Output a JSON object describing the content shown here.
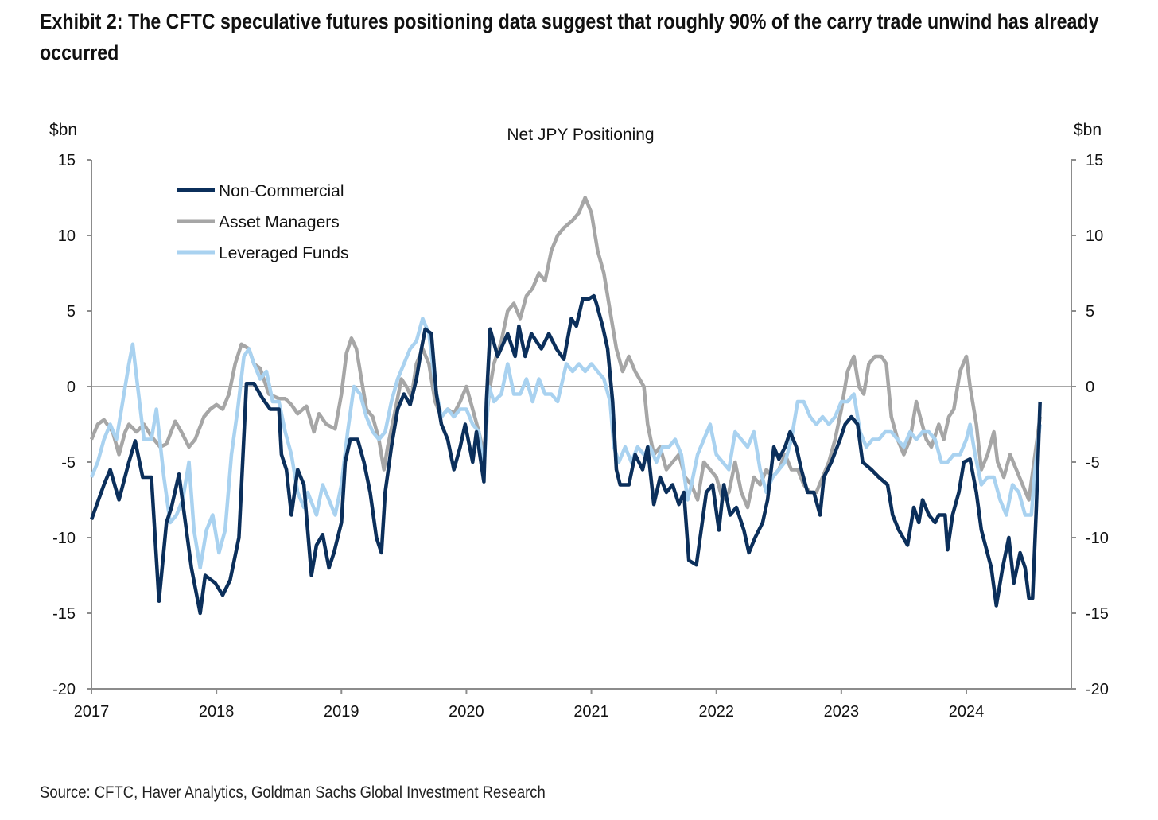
{
  "title": "Exhibit 2: The CFTC speculative futures positioning data suggest that roughly 90% of the carry trade unwind has already occurred",
  "source": "Source: CFTC, Haver Analytics, Goldman Sachs Global Investment Research",
  "chart_data": {
    "type": "line",
    "title": "Net JPY Positioning",
    "ylabel_left": "$bn",
    "ylabel_right": "$bn",
    "xlabel": "",
    "xlim": [
      2017,
      2024.84
    ],
    "ylim": [
      -20,
      15
    ],
    "yticks": [
      15,
      10,
      5,
      0,
      -5,
      -10,
      -15,
      -20
    ],
    "xticks": [
      2017,
      2018,
      2019,
      2020,
      2021,
      2022,
      2023,
      2024
    ],
    "zero_line": true,
    "legend_position": "top-left",
    "series": [
      {
        "name": "Non-Commercial",
        "color": "#0b2f5b",
        "x": [
          2017.0,
          2017.1,
          2017.15,
          2017.22,
          2017.3,
          2017.35,
          2017.41,
          2017.48,
          2017.54,
          2017.6,
          2017.64,
          2017.7,
          2017.8,
          2017.87,
          2017.91,
          2017.99,
          2018.05,
          2018.11,
          2018.18,
          2018.21,
          2018.24,
          2018.3,
          2018.37,
          2018.43,
          2018.5,
          2018.52,
          2018.56,
          2018.6,
          2018.65,
          2018.7,
          2018.76,
          2018.8,
          2018.85,
          2018.9,
          2018.94,
          2019.0,
          2019.03,
          2019.07,
          2019.13,
          2019.18,
          2019.23,
          2019.28,
          2019.32,
          2019.35,
          2019.4,
          2019.45,
          2019.5,
          2019.55,
          2019.6,
          2019.64,
          2019.67,
          2019.72,
          2019.76,
          2019.8,
          2019.85,
          2019.9,
          2019.95,
          2019.99,
          2020.05,
          2020.08,
          2020.14,
          2020.16,
          2020.19,
          2020.25,
          2020.33,
          2020.39,
          2020.42,
          2020.47,
          2020.52,
          2020.6,
          2020.66,
          2020.72,
          2020.78,
          2020.84,
          2020.88,
          2020.93,
          2020.98,
          2021.02,
          2021.04,
          2021.09,
          2021.13,
          2021.17,
          2021.2,
          2021.23,
          2021.3,
          2021.35,
          2021.41,
          2021.45,
          2021.5,
          2021.55,
          2021.6,
          2021.65,
          2021.7,
          2021.74,
          2021.78,
          2021.84,
          2021.87,
          2021.92,
          2021.97,
          2022.02,
          2022.06,
          2022.11,
          2022.16,
          2022.22,
          2022.26,
          2022.31,
          2022.37,
          2022.41,
          2022.46,
          2022.5,
          2022.55,
          2022.59,
          2022.64,
          2022.68,
          2022.73,
          2022.78,
          2022.83,
          2022.86,
          2022.92,
          2022.99,
          2023.03,
          2023.08,
          2023.13,
          2023.17,
          2023.24,
          2023.3,
          2023.37,
          2023.41,
          2023.46,
          2023.53,
          2023.58,
          2023.62,
          2023.65,
          2023.7,
          2023.75,
          2023.78,
          2023.83,
          2023.85,
          2023.89,
          2023.94,
          2023.98,
          2024.03,
          2024.08,
          2024.12,
          2024.2,
          2024.24,
          2024.29,
          2024.34,
          2024.38,
          2024.43,
          2024.47,
          2024.5,
          2024.53,
          2024.56,
          2024.59
        ],
        "y": [
          -8.8,
          -6.5,
          -5.5,
          -7.5,
          -5,
          -3.6,
          -6,
          -6,
          -14.2,
          -9,
          -8,
          -5.8,
          -12,
          -15,
          -12.5,
          -13,
          -13.8,
          -12.8,
          -10,
          -5,
          0.2,
          0.2,
          -0.8,
          -1.5,
          -1.5,
          -4.5,
          -5.5,
          -8.5,
          -5.5,
          -6.5,
          -12.5,
          -10.5,
          -9.8,
          -12,
          -11,
          -9,
          -5,
          -3.5,
          -3.5,
          -5,
          -7,
          -10,
          -11,
          -7,
          -4,
          -1.5,
          -0.5,
          -1.2,
          0.5,
          2.5,
          3.8,
          3.5,
          -0.5,
          -2.5,
          -3.5,
          -5.5,
          -4,
          -2.5,
          -5,
          -3,
          -6.3,
          -1,
          3.8,
          2,
          3.5,
          2,
          4,
          2,
          3.5,
          2.5,
          3.5,
          2.5,
          1.8,
          4.5,
          4,
          5.8,
          5.8,
          6,
          5.5,
          4,
          2.5,
          -1,
          -5.5,
          -6.5,
          -6.5,
          -4.5,
          -5.5,
          -4,
          -7.8,
          -6,
          -7,
          -6.5,
          -7.8,
          -7,
          -11.5,
          -11.8,
          -10,
          -7,
          -6.5,
          -9.5,
          -6.5,
          -8.5,
          -8,
          -9.5,
          -11,
          -10,
          -9,
          -7.5,
          -4,
          -4.8,
          -4,
          -3,
          -4,
          -5.5,
          -7,
          -7,
          -8.5,
          -6,
          -5,
          -3.5,
          -2.5,
          -2,
          -2.5,
          -5,
          -5.5,
          -6,
          -6.5,
          -8.5,
          -9.5,
          -10.5,
          -8,
          -9,
          -7.5,
          -8.5,
          -9,
          -8.5,
          -8.5,
          -10.8,
          -8.5,
          -7,
          -5,
          -4.8,
          -7,
          -9.5,
          -12,
          -14.5,
          -12,
          -10,
          -13,
          -11,
          -12,
          -14,
          -14,
          -8,
          -1
        ]
      },
      {
        "name": "Asset Managers",
        "color": "#a6a6a6",
        "x": [
          2017.0,
          2017.05,
          2017.1,
          2017.17,
          2017.22,
          2017.27,
          2017.3,
          2017.36,
          2017.42,
          2017.48,
          2017.55,
          2017.6,
          2017.67,
          2017.72,
          2017.78,
          2017.83,
          2017.9,
          2017.95,
          2018.0,
          2018.05,
          2018.1,
          2018.15,
          2018.2,
          2018.26,
          2018.3,
          2018.35,
          2018.42,
          2018.5,
          2018.55,
          2018.6,
          2018.65,
          2018.72,
          2018.78,
          2018.82,
          2018.88,
          2018.95,
          2019.0,
          2019.04,
          2019.08,
          2019.12,
          2019.17,
          2019.2,
          2019.25,
          2019.3,
          2019.34,
          2019.37,
          2019.42,
          2019.48,
          2019.52,
          2019.56,
          2019.6,
          2019.65,
          2019.7,
          2019.75,
          2019.8,
          2019.85,
          2019.9,
          2019.95,
          2020.0,
          2020.05,
          2020.1,
          2020.14,
          2020.18,
          2020.22,
          2020.28,
          2020.33,
          2020.38,
          2020.43,
          2020.48,
          2020.53,
          2020.58,
          2020.63,
          2020.68,
          2020.73,
          2020.78,
          2020.85,
          2020.9,
          2020.95,
          2021.0,
          2021.05,
          2021.1,
          2021.15,
          2021.2,
          2021.25,
          2021.3,
          2021.35,
          2021.42,
          2021.45,
          2021.5,
          2021.55,
          2021.6,
          2021.65,
          2021.7,
          2021.75,
          2021.8,
          2021.85,
          2021.9,
          2021.95,
          2022.0,
          2022.05,
          2022.1,
          2022.15,
          2022.2,
          2022.25,
          2022.3,
          2022.35,
          2022.4,
          2022.45,
          2022.5,
          2022.55,
          2022.6,
          2022.65,
          2022.7,
          2022.75,
          2022.8,
          2022.85,
          2022.9,
          2022.95,
          2023.0,
          2023.05,
          2023.1,
          2023.14,
          2023.18,
          2023.22,
          2023.27,
          2023.32,
          2023.36,
          2023.4,
          2023.45,
          2023.5,
          2023.55,
          2023.6,
          2023.63,
          2023.68,
          2023.72,
          2023.78,
          2023.82,
          2023.86,
          2023.9,
          2023.95,
          2024.0,
          2024.03,
          2024.08,
          2024.12,
          2024.17,
          2024.22,
          2024.25,
          2024.3,
          2024.35,
          2024.4,
          2024.45,
          2024.5,
          2024.55,
          2024.59
        ],
        "y": [
          -3.5,
          -2.5,
          -2.2,
          -3,
          -4.5,
          -3,
          -2.5,
          -3,
          -2.5,
          -3.3,
          -4,
          -3.8,
          -2.3,
          -3,
          -4,
          -3.5,
          -2,
          -1.5,
          -1.2,
          -1.5,
          -0.5,
          1.5,
          2.8,
          2.5,
          1.5,
          1.2,
          -0.5,
          -0.8,
          -0.8,
          -1.2,
          -1.8,
          -1.3,
          -3,
          -1.8,
          -2.5,
          -2.8,
          -0.5,
          2.2,
          3.2,
          2.5,
          0,
          -1.5,
          -2,
          -3.5,
          -5.5,
          -4,
          -2,
          0.5,
          0,
          -0.7,
          1.5,
          2.5,
          1.5,
          -1,
          -2,
          -1.5,
          -1.8,
          -1,
          0,
          -1.5,
          -3,
          -4.5,
          -0.5,
          1.5,
          3,
          5,
          5.5,
          4.5,
          6,
          6.5,
          7.5,
          7,
          9,
          10,
          10.5,
          11,
          11.5,
          12.5,
          11.5,
          9,
          7.5,
          5,
          2.5,
          1,
          2,
          1,
          0,
          -2.5,
          -4.5,
          -4,
          -5.5,
          -5,
          -4.5,
          -6,
          -6.5,
          -7.5,
          -5,
          -5.5,
          -6,
          -7.5,
          -7,
          -5,
          -7,
          -8,
          -6,
          -6.5,
          -5.5,
          -6,
          -5.5,
          -4.5,
          -5.5,
          -5.5,
          -6.5,
          -7,
          -7,
          -6,
          -5,
          -3.5,
          -1.5,
          1,
          2,
          0,
          -0.5,
          1.5,
          2,
          2,
          1.5,
          -2,
          -3.5,
          -4.5,
          -3.5,
          -1,
          -2,
          -3.5,
          -4,
          -2.5,
          -3.5,
          -2,
          -1.5,
          1,
          2,
          0,
          -2.5,
          -5.5,
          -4.5,
          -3,
          -5,
          -6,
          -4.5,
          -5.5,
          -6.5,
          -7.5,
          -4.5,
          -2
        ]
      },
      {
        "name": "Leveraged Funds",
        "color": "#a9d2f0",
        "x": [
          2017.0,
          2017.05,
          2017.1,
          2017.15,
          2017.2,
          2017.25,
          2017.3,
          2017.33,
          2017.37,
          2017.42,
          2017.48,
          2017.52,
          2017.58,
          2017.63,
          2017.68,
          2017.73,
          2017.78,
          2017.82,
          2017.87,
          2017.92,
          2017.97,
          2018.02,
          2018.07,
          2018.12,
          2018.17,
          2018.22,
          2018.26,
          2018.3,
          2018.35,
          2018.4,
          2018.45,
          2018.5,
          2018.55,
          2018.6,
          2018.65,
          2018.7,
          2018.73,
          2018.8,
          2018.85,
          2018.9,
          2018.95,
          2019.0,
          2019.05,
          2019.1,
          2019.15,
          2019.2,
          2019.25,
          2019.3,
          2019.35,
          2019.4,
          2019.45,
          2019.5,
          2019.55,
          2019.6,
          2019.65,
          2019.7,
          2019.75,
          2019.8,
          2019.85,
          2019.9,
          2019.95,
          2020.0,
          2020.05,
          2020.1,
          2020.14,
          2020.18,
          2020.22,
          2020.28,
          2020.33,
          2020.38,
          2020.43,
          2020.48,
          2020.53,
          2020.58,
          2020.63,
          2020.68,
          2020.73,
          2020.8,
          2020.85,
          2020.9,
          2020.95,
          2021.0,
          2021.05,
          2021.1,
          2021.15,
          2021.18,
          2021.22,
          2021.27,
          2021.32,
          2021.37,
          2021.42,
          2021.47,
          2021.52,
          2021.57,
          2021.62,
          2021.67,
          2021.72,
          2021.77,
          2021.8,
          2021.85,
          2021.9,
          2021.95,
          2022.0,
          2022.05,
          2022.1,
          2022.15,
          2022.2,
          2022.25,
          2022.3,
          2022.35,
          2022.4,
          2022.45,
          2022.5,
          2022.55,
          2022.6,
          2022.65,
          2022.7,
          2022.75,
          2022.8,
          2022.85,
          2022.9,
          2022.95,
          2023.0,
          2023.05,
          2023.1,
          2023.15,
          2023.2,
          2023.25,
          2023.3,
          2023.35,
          2023.4,
          2023.45,
          2023.5,
          2023.55,
          2023.6,
          2023.65,
          2023.7,
          2023.75,
          2023.8,
          2023.85,
          2023.9,
          2023.95,
          2024.0,
          2024.03,
          2024.07,
          2024.12,
          2024.17,
          2024.22,
          2024.27,
          2024.32,
          2024.37,
          2024.42,
          2024.47,
          2024.52,
          2024.55,
          2024.59
        ],
        "y": [
          -6,
          -5,
          -3.5,
          -2.5,
          -3.5,
          -1,
          1.5,
          2.8,
          0,
          -3.5,
          -3.5,
          -1.5,
          -6,
          -9,
          -8.5,
          -7.5,
          -5,
          -9.5,
          -12,
          -9.5,
          -8.5,
          -11,
          -9.5,
          -4.5,
          -1.5,
          2,
          2.5,
          1.5,
          0.5,
          1,
          -1,
          -1,
          -3,
          -4.5,
          -7,
          -8,
          -7,
          -8.5,
          -6.5,
          -7.5,
          -8.5,
          -6.5,
          -3,
          0,
          -0.5,
          -2,
          -3,
          -3.5,
          -3,
          -1,
          0.5,
          1.5,
          2.5,
          3,
          4.5,
          3.5,
          0,
          -2,
          -1.5,
          -2,
          -1.5,
          -1.5,
          -2.5,
          -3,
          -5.5,
          0,
          -1,
          -0.5,
          1.5,
          -0.5,
          -0.5,
          0.5,
          -1,
          0.5,
          -0.5,
          -0.5,
          -1,
          1.5,
          1,
          1.5,
          1,
          1.5,
          1,
          0.5,
          -1,
          -4,
          -5,
          -4,
          -5,
          -4,
          -4.5,
          -4,
          -5,
          -4,
          -4,
          -3.5,
          -4.5,
          -7.5,
          -6.5,
          -4.5,
          -3.5,
          -2.5,
          -4.5,
          -5,
          -5.5,
          -3,
          -3.5,
          -4,
          -3,
          -5.5,
          -7,
          -6,
          -5.5,
          -5,
          -3.5,
          -1,
          -1,
          -2,
          -2.5,
          -2,
          -2.5,
          -2,
          -1,
          -1,
          -0.5,
          -3,
          -4,
          -3.5,
          -3.5,
          -3,
          -3,
          -3.5,
          -4,
          -3,
          -3.5,
          -3,
          -3,
          -3.5,
          -5,
          -5,
          -4.5,
          -4.5,
          -3.5,
          -2.5,
          -4.5,
          -6.5,
          -6,
          -6,
          -7.5,
          -8.5,
          -6.5,
          -7,
          -8.5,
          -8.5,
          -5.5,
          -2.5
        ]
      }
    ]
  }
}
